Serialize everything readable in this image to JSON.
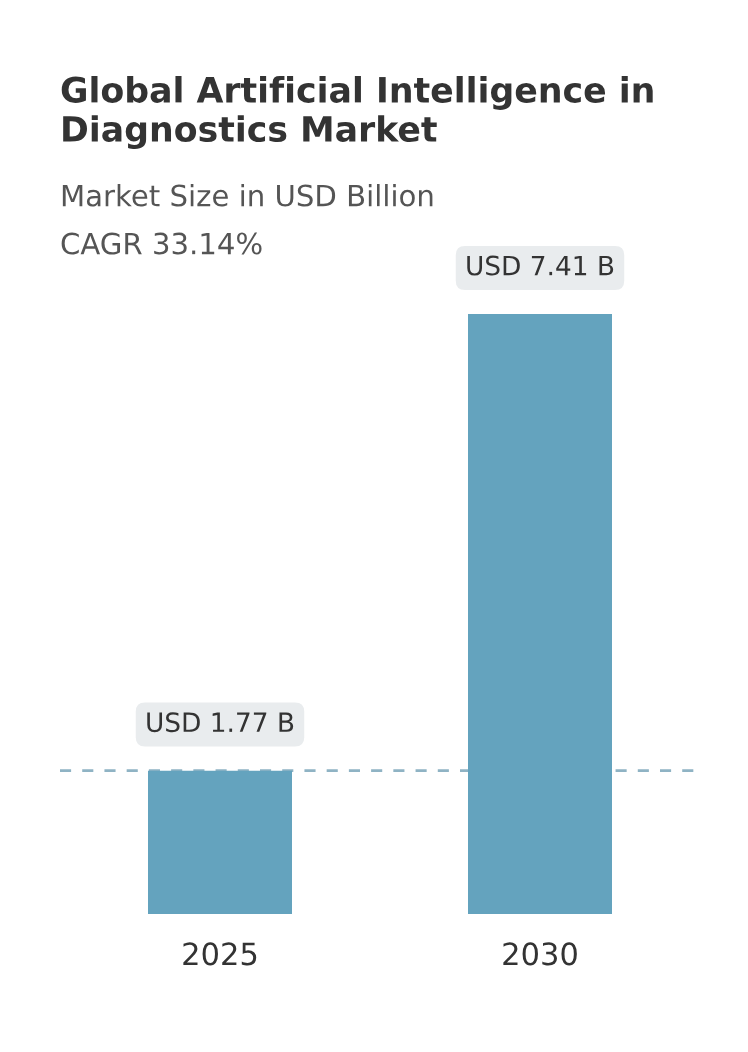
{
  "chart_data": {
    "type": "bar",
    "title": "Global Artificial Intelligence in Diagnostics Market",
    "subtitle": "Market Size in USD Billion",
    "annotations": [
      "CAGR 33.14%"
    ],
    "categories": [
      "2025",
      "2030"
    ],
    "values": [
      1.77,
      7.41
    ],
    "color": "#64a3be",
    "value_labels": [
      "USD 1.77 B",
      "USD 7.41 B"
    ],
    "ref_lines": [
      {
        "axis": "y",
        "value": 1.77,
        "label": null,
        "color": "#8fb3c4",
        "line_style": "dashed"
      }
    ],
    "grid": false,
    "legend": false
  }
}
